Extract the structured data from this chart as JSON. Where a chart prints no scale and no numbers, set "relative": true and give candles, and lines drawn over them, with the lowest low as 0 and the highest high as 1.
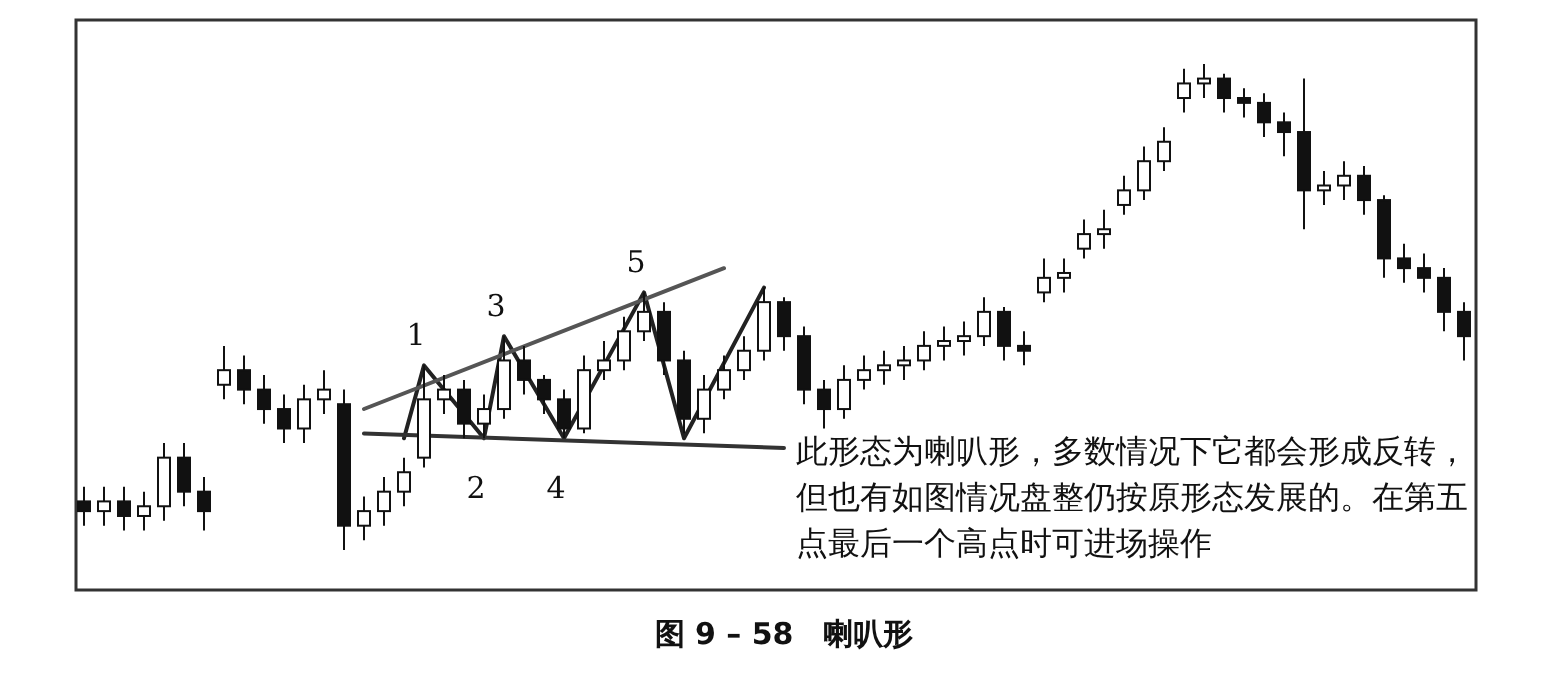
{
  "chart_data": {
    "type": "candlestick",
    "title": "图 9 – 58　喇叭形",
    "relative": true,
    "color": "#111111",
    "categories": [
      null,
      null,
      null,
      null,
      null,
      null,
      null,
      null,
      null,
      null,
      null,
      null,
      null,
      null,
      null,
      null,
      null,
      null,
      null,
      null,
      null,
      null,
      null,
      null,
      null,
      null,
      null,
      null,
      null,
      null,
      null,
      null,
      null,
      null,
      null,
      null,
      null,
      null,
      null,
      null,
      null,
      null,
      null,
      null,
      null,
      null,
      null,
      null,
      null,
      null,
      null,
      null,
      null,
      null,
      null,
      null,
      null,
      null,
      null,
      null,
      null,
      null,
      null,
      null,
      null,
      null,
      null,
      null,
      null,
      null
    ],
    "ohlc": [
      [
        0.1,
        0.13,
        0.05,
        0.08
      ],
      [
        0.08,
        0.13,
        0.05,
        0.1
      ],
      [
        0.1,
        0.13,
        0.04,
        0.07
      ],
      [
        0.07,
        0.12,
        0.04,
        0.09
      ],
      [
        0.09,
        0.22,
        0.06,
        0.19
      ],
      [
        0.19,
        0.22,
        0.09,
        0.12
      ],
      [
        0.12,
        0.15,
        0.04,
        0.08
      ],
      [
        0.34,
        0.42,
        0.31,
        0.37
      ],
      [
        0.37,
        0.4,
        0.3,
        0.33
      ],
      [
        0.33,
        0.36,
        0.26,
        0.29
      ],
      [
        0.29,
        0.32,
        0.22,
        0.25
      ],
      [
        0.25,
        0.34,
        0.22,
        0.31
      ],
      [
        0.31,
        0.37,
        0.28,
        0.33
      ],
      [
        0.3,
        0.33,
        0.0,
        0.05
      ],
      [
        0.05,
        0.11,
        0.02,
        0.08
      ],
      [
        0.08,
        0.15,
        0.05,
        0.12
      ],
      [
        0.12,
        0.19,
        0.09,
        0.16
      ],
      [
        0.19,
        0.38,
        0.17,
        0.31
      ],
      [
        0.31,
        0.36,
        0.28,
        0.33
      ],
      [
        0.33,
        0.35,
        0.23,
        0.26
      ],
      [
        0.26,
        0.32,
        0.23,
        0.29
      ],
      [
        0.29,
        0.44,
        0.27,
        0.39
      ],
      [
        0.39,
        0.42,
        0.32,
        0.35
      ],
      [
        0.35,
        0.36,
        0.28,
        0.31
      ],
      [
        0.31,
        0.33,
        0.23,
        0.25
      ],
      [
        0.25,
        0.4,
        0.24,
        0.37
      ],
      [
        0.37,
        0.43,
        0.35,
        0.39
      ],
      [
        0.39,
        0.48,
        0.37,
        0.45
      ],
      [
        0.45,
        0.53,
        0.43,
        0.49
      ],
      [
        0.49,
        0.51,
        0.36,
        0.39
      ],
      [
        0.39,
        0.41,
        0.24,
        0.27
      ],
      [
        0.27,
        0.36,
        0.24,
        0.33
      ],
      [
        0.33,
        0.4,
        0.31,
        0.37
      ],
      [
        0.37,
        0.44,
        0.35,
        0.41
      ],
      [
        0.41,
        0.54,
        0.39,
        0.51
      ],
      [
        0.51,
        0.52,
        0.41,
        0.44
      ],
      [
        0.44,
        0.46,
        0.3,
        0.33
      ],
      [
        0.33,
        0.35,
        0.25,
        0.29
      ],
      [
        0.29,
        0.38,
        0.27,
        0.35
      ],
      [
        0.35,
        0.4,
        0.33,
        0.37
      ],
      [
        0.37,
        0.41,
        0.34,
        0.38
      ],
      [
        0.38,
        0.42,
        0.35,
        0.39
      ],
      [
        0.39,
        0.45,
        0.37,
        0.42
      ],
      [
        0.42,
        0.46,
        0.39,
        0.43
      ],
      [
        0.43,
        0.47,
        0.4,
        0.44
      ],
      [
        0.44,
        0.52,
        0.42,
        0.49
      ],
      [
        0.49,
        0.5,
        0.39,
        0.42
      ],
      [
        0.42,
        0.45,
        0.38,
        0.41
      ],
      [
        0.53,
        0.6,
        0.51,
        0.56
      ],
      [
        0.56,
        0.6,
        0.53,
        0.57
      ],
      [
        0.62,
        0.68,
        0.6,
        0.65
      ],
      [
        0.65,
        0.7,
        0.62,
        0.66
      ],
      [
        0.71,
        0.77,
        0.69,
        0.74
      ],
      [
        0.74,
        0.83,
        0.72,
        0.8
      ],
      [
        0.8,
        0.87,
        0.78,
        0.84
      ],
      [
        0.93,
        0.99,
        0.9,
        0.96
      ],
      [
        0.96,
        1.0,
        0.93,
        0.97
      ],
      [
        0.97,
        0.98,
        0.9,
        0.93
      ],
      [
        0.93,
        0.95,
        0.89,
        0.92
      ],
      [
        0.92,
        0.94,
        0.85,
        0.88
      ],
      [
        0.88,
        0.9,
        0.81,
        0.86
      ],
      [
        0.86,
        0.97,
        0.66,
        0.74
      ],
      [
        0.74,
        0.78,
        0.71,
        0.75
      ],
      [
        0.75,
        0.8,
        0.72,
        0.77
      ],
      [
        0.77,
        0.79,
        0.69,
        0.72
      ],
      [
        0.72,
        0.73,
        0.56,
        0.6
      ],
      [
        0.6,
        0.63,
        0.55,
        0.58
      ],
      [
        0.58,
        0.61,
        0.53,
        0.56
      ],
      [
        0.56,
        0.58,
        0.45,
        0.49
      ],
      [
        0.49,
        0.51,
        0.39,
        0.44
      ]
    ],
    "series": [
      {
        "type": "line",
        "color": "#222222",
        "values": [
          null,
          null,
          null,
          null,
          null,
          null,
          null,
          null,
          null,
          null,
          null,
          null,
          null,
          null,
          null,
          null,
          0.23,
          0.38,
          null,
          null,
          0.23,
          0.44,
          null,
          null,
          0.23,
          null,
          null,
          null,
          0.53,
          null,
          0.23,
          null,
          null,
          null,
          0.54,
          null,
          null,
          null,
          null,
          null,
          null,
          null,
          null,
          null,
          null,
          null,
          null,
          null,
          null,
          null,
          null,
          null,
          null,
          null,
          null,
          null,
          null,
          null,
          null,
          null,
          null,
          null,
          null,
          null,
          null,
          null,
          null,
          null,
          null,
          null
        ]
      },
      {
        "type": "line",
        "color": "#555555",
        "values": [
          null,
          null,
          null,
          null,
          null,
          null,
          null,
          null,
          null,
          null,
          null,
          null,
          null,
          null,
          0.29,
          null,
          null,
          null,
          null,
          null,
          null,
          null,
          null,
          null,
          null,
          null,
          null,
          null,
          null,
          null,
          null,
          null,
          0.58,
          null,
          null,
          null,
          null,
          null,
          null,
          null,
          null,
          null,
          null,
          null,
          null,
          null,
          null,
          null,
          null,
          null,
          null,
          null,
          null,
          null,
          null,
          null,
          null,
          null,
          null,
          null,
          null,
          null,
          null,
          null,
          null,
          null,
          null,
          null,
          null,
          null
        ]
      },
      {
        "type": "line",
        "color": "#333333",
        "values": [
          null,
          null,
          null,
          null,
          null,
          null,
          null,
          null,
          null,
          null,
          null,
          null,
          null,
          null,
          0.24,
          null,
          null,
          null,
          null,
          null,
          null,
          null,
          null,
          null,
          null,
          null,
          null,
          null,
          null,
          null,
          null,
          null,
          null,
          null,
          null,
          0.21,
          null,
          null,
          null,
          null,
          null,
          null,
          null,
          null,
          null,
          null,
          null,
          null,
          null,
          null,
          null,
          null,
          null,
          null,
          null,
          null,
          null,
          null,
          null,
          null,
          null,
          null,
          null,
          null,
          null,
          null,
          null,
          null,
          null,
          null
        ]
      }
    ],
    "annotations": [
      "1",
      "2",
      "3",
      "4",
      "5",
      "此形态为喇叭形，多数情况下它都会形成反转，但也有如图情况盘整仍按原形态发展的。在第五点最后一个高点时可进场操作"
    ]
  }
}
